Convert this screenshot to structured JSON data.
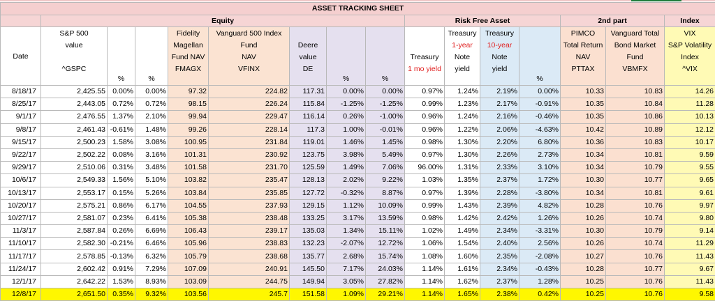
{
  "sheet_title": "ASSET TRACKING SHEET",
  "groups": {
    "equity": "Equity",
    "risk_free": "Risk Free Asset",
    "second": "2nd part",
    "index": "Index"
  },
  "headers": {
    "date": "Date",
    "sp500_l1": "S&P 500",
    "sp500_l2": "value",
    "sp500_l3": "^GSPC",
    "pct": "%",
    "fid_l1": "Fidelity",
    "fid_l2": "Magellan",
    "fid_l3": "Fund NAV",
    "fid_l4": "FMAGX",
    "van_l1": "Vanguard 500 Index",
    "van_l2": "Fund",
    "van_l3": "NAV",
    "van_l4": "VFINX",
    "deere_l1": "Deere",
    "deere_l2": "value",
    "deere_l3": "DE",
    "tr1_l1": "Treasury",
    "tr1_l2": "1 mo yield",
    "tr1y_l1": "Treasury",
    "tr1y_l2": "1-year",
    "tr1y_l3": "Note",
    "tr1y_l4": "yield",
    "tr10_l1": "Treasury",
    "tr10_l2": "10-year",
    "tr10_l3": "Note",
    "tr10_l4": "yield",
    "pim_l1": "PIMCO",
    "pim_l2": "Total Return",
    "pim_l3": "NAV",
    "pim_l4": "PTTAX",
    "vbm_l1": "Vanguard Total",
    "vbm_l2": "Bond Market",
    "vbm_l3": "Fund",
    "vbm_l4": "VBMFX",
    "vix_l1": "VIX",
    "vix_l2": "S&P Volatility",
    "vix_l3": "Index",
    "vix_l4": "^VIX"
  },
  "rows": [
    [
      "8/18/17",
      "2,425.55",
      "0.00%",
      "0.00%",
      "97.32",
      "224.82",
      "117.31",
      "0.00%",
      "0.00%",
      "0.97%",
      "1.24%",
      "2.19%",
      "0.00%",
      "10.33",
      "10.83",
      "14.26"
    ],
    [
      "8/25/17",
      "2,443.05",
      "0.72%",
      "0.72%",
      "98.15",
      "226.24",
      "115.84",
      "-1.25%",
      "-1.25%",
      "0.99%",
      "1.23%",
      "2.17%",
      "-0.91%",
      "10.35",
      "10.84",
      "11.28"
    ],
    [
      "9/1/17",
      "2,476.55",
      "1.37%",
      "2.10%",
      "99.94",
      "229.47",
      "116.14",
      "0.26%",
      "-1.00%",
      "0.96%",
      "1.24%",
      "2.16%",
      "-0.46%",
      "10.35",
      "10.86",
      "10.13"
    ],
    [
      "9/8/17",
      "2,461.43",
      "-0.61%",
      "1.48%",
      "99.26",
      "228.14",
      "117.3",
      "1.00%",
      "-0.01%",
      "0.96%",
      "1.22%",
      "2.06%",
      "-4.63%",
      "10.42",
      "10.89",
      "12.12"
    ],
    [
      "9/15/17",
      "2,500.23",
      "1.58%",
      "3.08%",
      "100.95",
      "231.84",
      "119.01",
      "1.46%",
      "1.45%",
      "0.98%",
      "1.30%",
      "2.20%",
      "6.80%",
      "10.36",
      "10.83",
      "10.17"
    ],
    [
      "9/22/17",
      "2,502.22",
      "0.08%",
      "3.16%",
      "101.31",
      "230.92",
      "123.75",
      "3.98%",
      "5.49%",
      "0.97%",
      "1.30%",
      "2.26%",
      "2.73%",
      "10.34",
      "10.81",
      "9.59"
    ],
    [
      "9/29/17",
      "2,510.06",
      "0.31%",
      "3.48%",
      "101.58",
      "231.70",
      "125.59",
      "1.49%",
      "7.06%",
      "96.00%",
      "1.31%",
      "2.33%",
      "3.10%",
      "10.34",
      "10.79",
      "9.55"
    ],
    [
      "10/6/17",
      "2,549.33",
      "1.56%",
      "5.10%",
      "103.82",
      "235.47",
      "128.13",
      "2.02%",
      "9.22%",
      "1.03%",
      "1.35%",
      "2.37%",
      "1.72%",
      "10.30",
      "10.77",
      "9.65"
    ],
    [
      "10/13/17",
      "2,553.17",
      "0.15%",
      "5.26%",
      "103.84",
      "235.85",
      "127.72",
      "-0.32%",
      "8.87%",
      "0.97%",
      "1.39%",
      "2.28%",
      "-3.80%",
      "10.34",
      "10.81",
      "9.61"
    ],
    [
      "10/20/17",
      "2,575.21",
      "0.86%",
      "6.17%",
      "104.55",
      "237.93",
      "129.15",
      "1.12%",
      "10.09%",
      "0.99%",
      "1.43%",
      "2.39%",
      "4.82%",
      "10.28",
      "10.76",
      "9.97"
    ],
    [
      "10/27/17",
      "2,581.07",
      "0.23%",
      "6.41%",
      "105.38",
      "238.48",
      "133.25",
      "3.17%",
      "13.59%",
      "0.98%",
      "1.42%",
      "2.42%",
      "1.26%",
      "10.26",
      "10.74",
      "9.80"
    ],
    [
      "11/3/17",
      "2,587.84",
      "0.26%",
      "6.69%",
      "106.43",
      "239.17",
      "135.03",
      "1.34%",
      "15.11%",
      "1.02%",
      "1.49%",
      "2.34%",
      "-3.31%",
      "10.30",
      "10.79",
      "9.14"
    ],
    [
      "11/10/17",
      "2,582.30",
      "-0.21%",
      "6.46%",
      "105.96",
      "238.83",
      "132.23",
      "-2.07%",
      "12.72%",
      "1.06%",
      "1.54%",
      "2.40%",
      "2.56%",
      "10.26",
      "10.74",
      "11.29"
    ],
    [
      "11/17/17",
      "2,578.85",
      "-0.13%",
      "6.32%",
      "105.79",
      "238.68",
      "135.77",
      "2.68%",
      "15.74%",
      "1.08%",
      "1.60%",
      "2.35%",
      "-2.08%",
      "10.27",
      "10.76",
      "11.43"
    ],
    [
      "11/24/17",
      "2,602.42",
      "0.91%",
      "7.29%",
      "107.09",
      "240.91",
      "145.50",
      "7.17%",
      "24.03%",
      "1.14%",
      "1.61%",
      "2.34%",
      "-0.43%",
      "10.28",
      "10.77",
      "9.67"
    ],
    [
      "12/1/17",
      "2,642.22",
      "1.53%",
      "8.93%",
      "103.09",
      "244.75",
      "149.94",
      "3.05%",
      "27.82%",
      "1.14%",
      "1.62%",
      "2.37%",
      "1.28%",
      "10.25",
      "10.76",
      "11.43"
    ],
    [
      "12/8/17",
      "2,651.50",
      "0.35%",
      "9.32%",
      "103.56",
      "245.7",
      "151.58",
      "1.09%",
      "29.21%",
      "1.14%",
      "1.65%",
      "2.38%",
      "0.42%",
      "10.25",
      "10.76",
      "9.58"
    ]
  ]
}
